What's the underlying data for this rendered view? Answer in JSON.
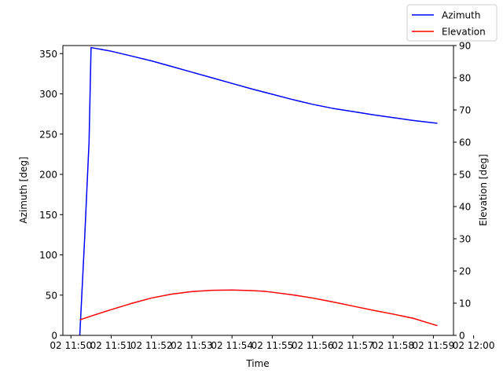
{
  "chart_data": {
    "type": "line",
    "xlabel": "Time",
    "ylabel_left": "Azimuth [deg]",
    "ylabel_right": "Elevation [deg]",
    "xlim": [
      -0.2,
      9.5
    ],
    "ylim_left": [
      0,
      360
    ],
    "ylim_right": [
      0,
      90
    ],
    "x_ticks": [
      {
        "x": 0,
        "label": "02 11:50"
      },
      {
        "x": 1,
        "label": "02 11:51"
      },
      {
        "x": 2,
        "label": "02 11:52"
      },
      {
        "x": 3,
        "label": "02 11:53"
      },
      {
        "x": 4,
        "label": "02 11:54"
      },
      {
        "x": 5,
        "label": "02 11:55"
      },
      {
        "x": 6,
        "label": "02 11:56"
      },
      {
        "x": 7,
        "label": "02 11:57"
      },
      {
        "x": 8,
        "label": "02 11:58"
      },
      {
        "x": 9,
        "label": "02 11:59"
      },
      {
        "x": 10,
        "label": "02 12:00"
      }
    ],
    "y_ticks_left": [
      "0",
      "50",
      "100",
      "150",
      "200",
      "250",
      "300",
      "350"
    ],
    "y_ticks_right": [
      "0",
      "10",
      "20",
      "30",
      "40",
      "50",
      "60",
      "70",
      "80",
      "90"
    ],
    "legend_position": "top-right",
    "grid": false,
    "series": [
      {
        "name": "Azimuth",
        "axis": "left",
        "color": "#0000ff",
        "x": [
          0.22,
          0.34,
          0.45,
          0.5,
          1,
          1.5,
          2,
          2.5,
          3,
          3.5,
          4,
          4.5,
          5,
          5.5,
          6,
          6.5,
          7,
          7.5,
          8,
          8.5,
          9,
          9.1
        ],
        "y": [
          0,
          120,
          240,
          357.5,
          353,
          347,
          341,
          334,
          327,
          320,
          313,
          306,
          299.5,
          293,
          287,
          282,
          278,
          274,
          270.5,
          267,
          264,
          263.5
        ]
      },
      {
        "name": "Elevation",
        "axis": "right",
        "color": "#ff0000",
        "x": [
          0.22,
          0.5,
          1,
          1.5,
          2,
          2.5,
          3,
          3.5,
          4,
          4.5,
          4.8,
          5,
          5.5,
          6,
          6.5,
          7,
          7.5,
          8,
          8.5,
          9.1
        ],
        "y": [
          4.8,
          6.0,
          8.0,
          9.9,
          11.6,
          12.8,
          13.6,
          14.0,
          14.1,
          13.9,
          13.7,
          13.4,
          12.6,
          11.6,
          10.4,
          9.1,
          7.8,
          6.6,
          5.3,
          3.0
        ]
      }
    ]
  }
}
